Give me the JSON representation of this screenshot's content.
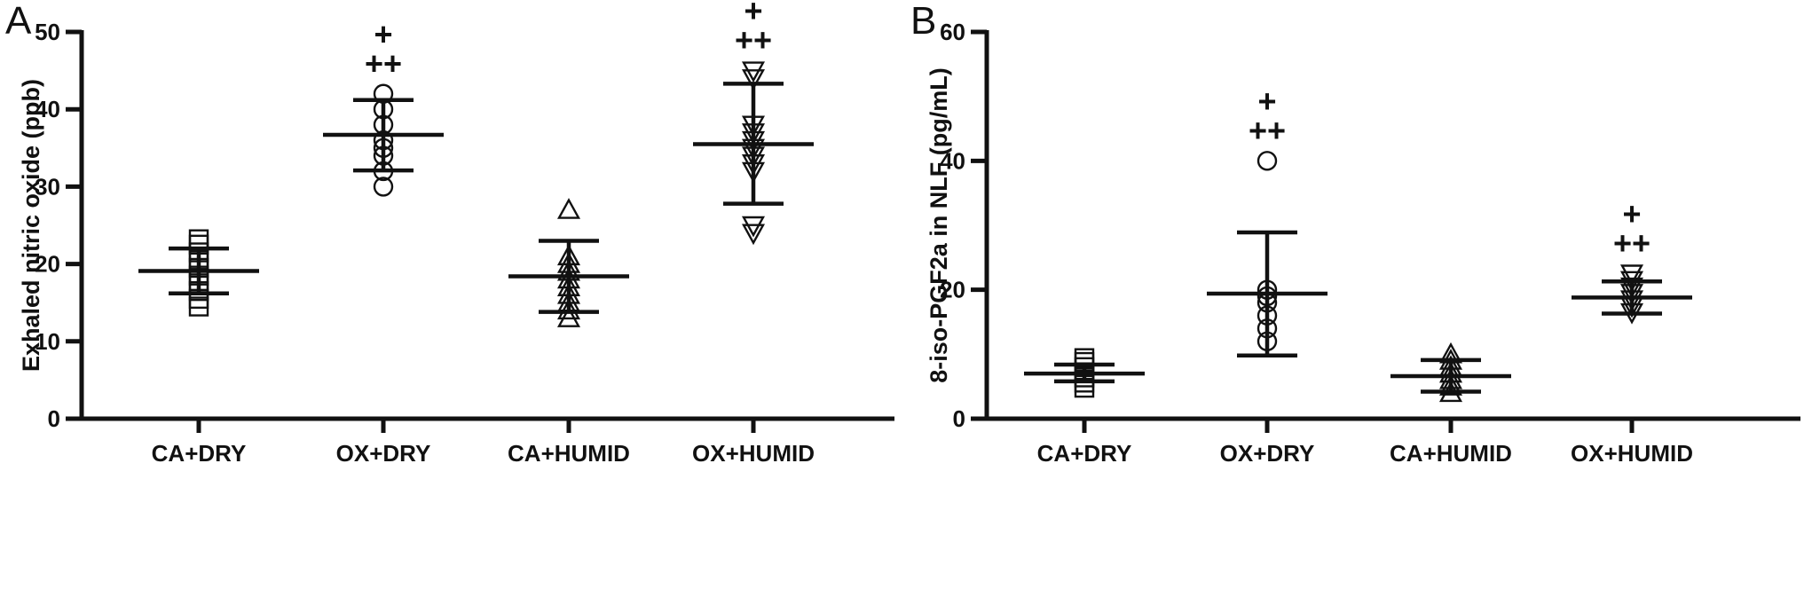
{
  "chart_data": [
    {
      "panel_label": "A",
      "type": "scatter",
      "ylabel": "Exhaled nitric oxide (ppb)",
      "ylim": [
        0,
        50
      ],
      "yticks": [
        0,
        10,
        20,
        30,
        40,
        50
      ],
      "categories": [
        "CA+DRY",
        "OX+DRY",
        "CA+HUMID",
        "OX+HUMID"
      ],
      "groups": [
        {
          "category": "CA+DRY",
          "marker": "square",
          "points": [
            14.5,
            15.5,
            16.5,
            17.5,
            18.5,
            19.5,
            20.5,
            21.5,
            22.5,
            23.2
          ],
          "mean": 19.1,
          "sd_low": 16.2,
          "sd_high": 22.0,
          "annotations": []
        },
        {
          "category": "OX+DRY",
          "marker": "circle",
          "points": [
            30,
            32,
            34,
            35,
            36,
            38,
            40,
            42
          ],
          "mean": 36.7,
          "sd_low": 32.1,
          "sd_high": 41.2,
          "annotations": [
            "+",
            "++"
          ]
        },
        {
          "category": "CA+HUMID",
          "marker": "triangle-up",
          "points": [
            13,
            14,
            15,
            16,
            17,
            18,
            19,
            20,
            21,
            27
          ],
          "mean": 18.4,
          "sd_low": 13.8,
          "sd_high": 23.0,
          "annotations": []
        },
        {
          "category": "OX+HUMID",
          "marker": "triangle-down",
          "points": [
            24,
            25,
            32,
            33,
            34,
            35,
            36,
            37,
            38,
            44,
            45
          ],
          "mean": 35.5,
          "sd_low": 27.8,
          "sd_high": 43.3,
          "annotations": [
            "+",
            "++"
          ]
        }
      ]
    },
    {
      "panel_label": "B",
      "type": "scatter",
      "ylabel": "8-iso-PGF2a in NLF (pg/mL)",
      "ylim": [
        0,
        60
      ],
      "yticks": [
        0,
        20,
        40,
        60
      ],
      "categories": [
        "CA+DRY",
        "OX+DRY",
        "CA+HUMID",
        "OX+HUMID"
      ],
      "groups": [
        {
          "category": "CA+DRY",
          "marker": "square",
          "points": [
            4.8,
            5.6,
            6.4,
            7.2,
            8.0,
            8.8,
            9.4
          ],
          "mean": 7.0,
          "sd_low": 5.8,
          "sd_high": 8.4,
          "annotations": []
        },
        {
          "category": "OX+DRY",
          "marker": "circle",
          "points": [
            12,
            14,
            16,
            18,
            19,
            20,
            40
          ],
          "mean": 19.4,
          "sd_low": 9.8,
          "sd_high": 28.9,
          "annotations": [
            "+",
            "++"
          ]
        },
        {
          "category": "CA+HUMID",
          "marker": "triangle-up",
          "points": [
            4,
            5,
            6,
            7,
            8,
            9,
            10
          ],
          "mean": 6.6,
          "sd_low": 4.2,
          "sd_high": 9.1,
          "annotations": []
        },
        {
          "category": "OX+HUMID",
          "marker": "triangle-down",
          "points": [
            16.5,
            17.5,
            18.5,
            19.5,
            20.5,
            21.5,
            22.5
          ],
          "mean": 18.8,
          "sd_low": 16.3,
          "sd_high": 21.3,
          "annotations": [
            "+",
            "++"
          ]
        }
      ]
    }
  ]
}
